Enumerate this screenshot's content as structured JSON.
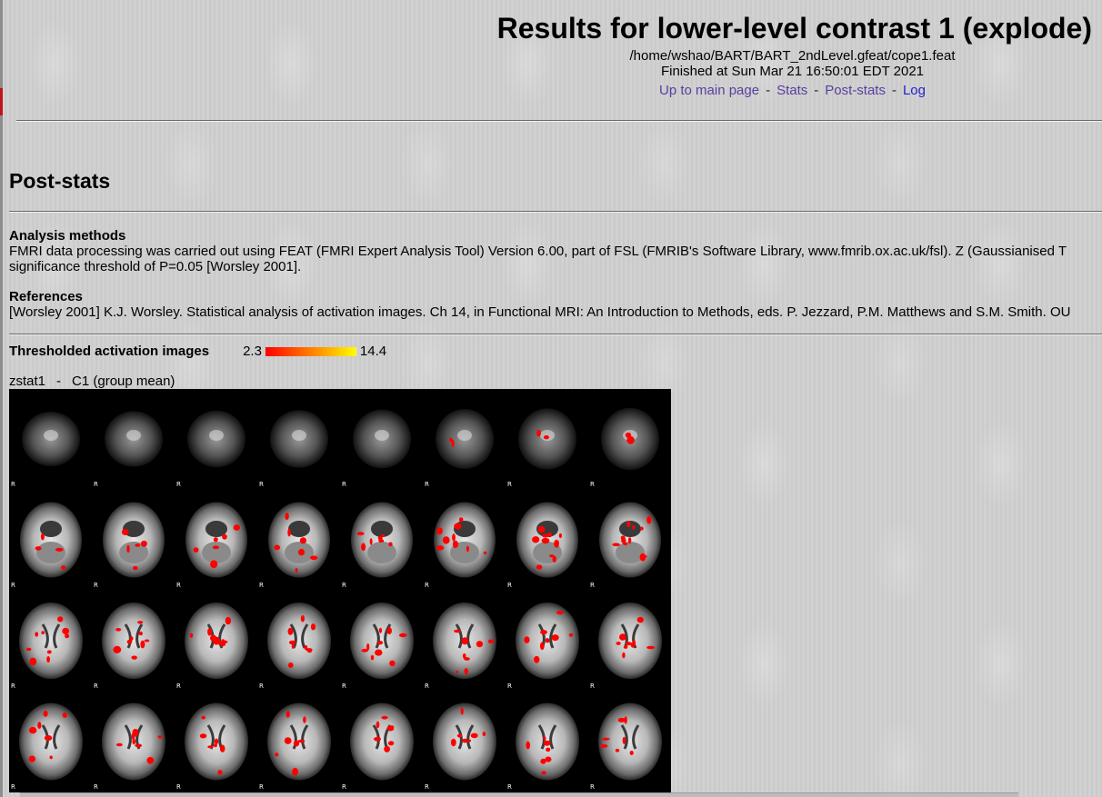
{
  "header": {
    "title": "Results for lower-level contrast 1 (explode)",
    "path": "/home/wshao/BART/BART_2ndLevel.gfeat/cope1.feat",
    "finished": "Finished at Sun Mar 21 16:50:01 EDT 2021",
    "links": [
      {
        "label": "Up to main page"
      },
      {
        "label": "Stats"
      },
      {
        "label": "Post-stats"
      },
      {
        "label": "Log"
      }
    ],
    "separator": "-"
  },
  "poststats": {
    "heading": "Post-stats",
    "analysis_heading": "Analysis methods",
    "analysis_line1": "FMRI data processing was carried out using FEAT (FMRI Expert Analysis Tool) Version 6.00, part of FSL (FMRIB's Software Library, www.fmrib.ox.ac.uk/fsl). Z (Gaussianised T",
    "analysis_line2": "significance threshold of P=0.05 [Worsley 2001].",
    "references_heading": "References",
    "references_line": "[Worsley 2001] K.J. Worsley. Statistical analysis of activation images. Ch 14, in Functional MRI: An Introduction to Methods, eds. P. Jezzard, P.M. Matthews and S.M. Smith. OU",
    "thresholded_heading": "Thresholded activation images",
    "colorbar_min": "2.3",
    "colorbar_max": "14.4",
    "zstat_name": "zstat1",
    "zstat_sep": "-",
    "zstat_contrast": "C1 (group mean)"
  },
  "montage": {
    "rows": 4,
    "cols": 8,
    "orientation_label": "R",
    "activation_color": "#ff0000"
  }
}
